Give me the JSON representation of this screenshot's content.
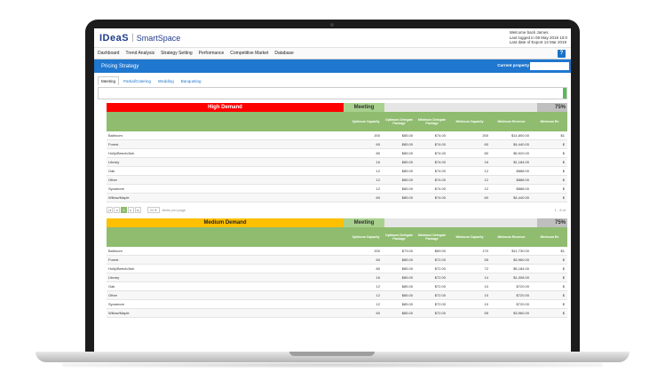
{
  "app": {
    "logo": "IDeaS",
    "product": "SmartSpace",
    "user_lines": [
      "Welcome back James",
      "Last logged in 09 May 2019 10:0",
      "Last date of Export 14 Mar 2019"
    ]
  },
  "nav": {
    "items": [
      "Dashboard",
      "Trend Analysis",
      "Strategy Setting",
      "Performance",
      "Competitive Market",
      "Database"
    ],
    "help": "?"
  },
  "page": {
    "title": "Pricing Strategy",
    "property_label": "Current property",
    "property_value": ""
  },
  "tabs": [
    "Meeting",
    "Partial/Catering",
    "Wedding",
    "Banqueting"
  ],
  "columns": [
    "Optimum Capacity",
    "Optimum Delegate Package",
    "Minimum Delegate Package",
    "Minimum Capacity",
    "Minimum Revenue",
    "Minimum Re"
  ],
  "high": {
    "label": "High Demand",
    "category": "Meeting",
    "pct": "75%",
    "rows": [
      {
        "name": "Ballroom",
        "v": [
          "200",
          "$85.00",
          "$74.00",
          "200",
          "$14,800.00",
          "$1"
        ]
      },
      {
        "name": "Forest",
        "v": [
          "60",
          "$85.00",
          "$74.00",
          "60",
          "$4,440.00",
          "$"
        ]
      },
      {
        "name": "Holly/Beech/Ash",
        "v": [
          "80",
          "$85.00",
          "$74.00",
          "80",
          "$5,920.00",
          "$"
        ]
      },
      {
        "name": "Library",
        "v": [
          "16",
          "$85.00",
          "$74.00",
          "16",
          "$1,184.00",
          "$"
        ]
      },
      {
        "name": "Oak",
        "v": [
          "12",
          "$85.00",
          "$74.00",
          "12",
          "$888.00",
          "$"
        ]
      },
      {
        "name": "Other",
        "v": [
          "12",
          "$85.00",
          "$74.00",
          "12",
          "$888.00",
          "$"
        ]
      },
      {
        "name": "Sycamore",
        "v": [
          "12",
          "$85.00",
          "$74.00",
          "12",
          "$888.00",
          "$"
        ]
      },
      {
        "name": "Willow/Maple",
        "v": [
          "60",
          "$85.00",
          "$74.00",
          "60",
          "$4,440.00",
          "$"
        ]
      }
    ]
  },
  "pager": {
    "first": "|◂",
    "prev": "◂",
    "page": "1",
    "next": "▸",
    "last": "▸|",
    "per_page": "20 ▾",
    "per_page_label": "items per page",
    "range": "1 - 8 of"
  },
  "medium": {
    "label": "Medium Demand",
    "category": "Meeting",
    "pct": "75%",
    "rows": [
      {
        "name": "Ballroom",
        "v": [
          "200",
          "$73.00",
          "$69.00",
          "170",
          "$11,730.00",
          "$1"
        ]
      },
      {
        "name": "Forest",
        "v": [
          "60",
          "$85.00",
          "$72.00",
          "55",
          "$3,960.00",
          "$"
        ]
      },
      {
        "name": "Holly/Beech/Ash",
        "v": [
          "80",
          "$85.00",
          "$72.00",
          "72",
          "$5,184.00",
          "$"
        ]
      },
      {
        "name": "Library",
        "v": [
          "16",
          "$85.00",
          "$72.00",
          "14",
          "$1,008.00",
          "$"
        ]
      },
      {
        "name": "Oak",
        "v": [
          "12",
          "$85.00",
          "$72.00",
          "10",
          "$720.00",
          "$"
        ]
      },
      {
        "name": "Other",
        "v": [
          "12",
          "$85.00",
          "$72.00",
          "10",
          "$720.00",
          "$"
        ]
      },
      {
        "name": "Sycamore",
        "v": [
          "12",
          "$85.00",
          "$72.00",
          "10",
          "$720.00",
          "$"
        ]
      },
      {
        "name": "Willow/Maple",
        "v": [
          "60",
          "$85.00",
          "$72.00",
          "55",
          "$3,960.00",
          "$"
        ]
      }
    ]
  }
}
